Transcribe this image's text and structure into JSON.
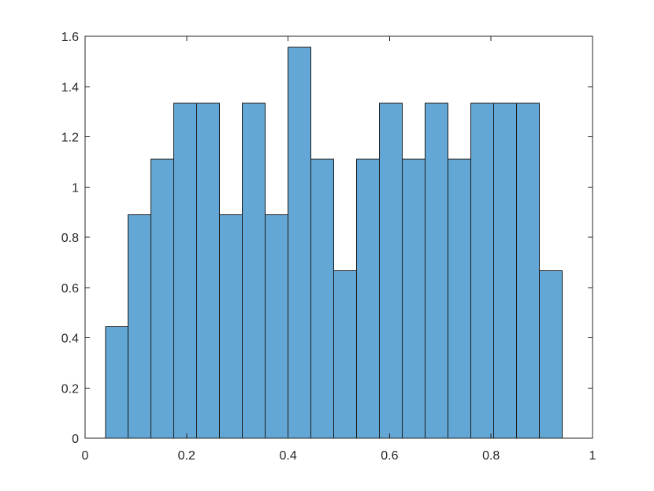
{
  "chart_data": {
    "type": "bar",
    "subtype": "histogram",
    "title": "",
    "xlabel": "",
    "ylabel": "",
    "xlim": [
      0,
      1
    ],
    "ylim": [
      0,
      1.6
    ],
    "bin_edges": [
      0.04,
      0.085,
      0.13,
      0.175,
      0.22,
      0.265,
      0.31,
      0.355,
      0.4,
      0.445,
      0.49,
      0.535,
      0.58,
      0.625,
      0.67,
      0.715,
      0.76,
      0.805,
      0.85,
      0.895,
      0.94
    ],
    "values": [
      0.444,
      0.889,
      1.111,
      1.333,
      1.333,
      0.889,
      1.333,
      0.889,
      1.556,
      1.111,
      0.667,
      1.111,
      1.333,
      1.111,
      1.333,
      1.111,
      1.333,
      1.333,
      1.333,
      0.667
    ],
    "x_ticks": [
      "0",
      "0.2",
      "0.4",
      "0.6",
      "0.8",
      "1"
    ],
    "y_ticks": [
      "0",
      "0.2",
      "0.4",
      "0.6",
      "0.8",
      "1",
      "1.2",
      "1.4",
      "1.6"
    ],
    "grid": false,
    "legend": "none",
    "bar_color": "#63a7d6",
    "edge_color": "#1a1a1a"
  }
}
